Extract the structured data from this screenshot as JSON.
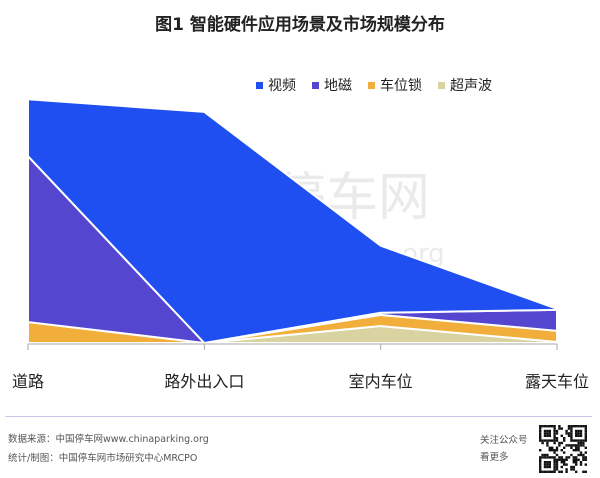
{
  "chart_data": {
    "type": "area",
    "stacked": true,
    "title": "图1 智能硬件应用场景及市场规模分布",
    "categories": [
      "道路",
      "路外出入口",
      "室内车位",
      "露天车位"
    ],
    "series": [
      {
        "name": "视频",
        "color": "#1f4ff0",
        "values": [
          21.5,
          87.2,
          25.3,
          0.4
        ]
      },
      {
        "name": "地磁",
        "color": "#5546d0",
        "values": [
          62.6,
          0,
          0.8,
          7.9
        ]
      },
      {
        "name": "车位锁",
        "color": "#f1ae3a",
        "values": [
          7.9,
          0,
          4.2,
          4.2
        ]
      },
      {
        "name": "超声波",
        "color": "#d8d3a0",
        "values": [
          0,
          0,
          6.4,
          0.4
        ]
      }
    ],
    "stack_order_bottom_to_top": [
      "超声波",
      "车位锁",
      "地磁",
      "视频"
    ],
    "xlabel": "",
    "ylabel": "",
    "y_axis_shown": false,
    "grid": false,
    "legend_position": "top-right"
  },
  "watermark": {
    "cn": "中国停车网",
    "url": "www.chinaparking.org"
  },
  "footer": {
    "source": "数据来源：中国停车网www.chinaparking.org",
    "credit": "统计/制图：中国停车网市场研究中心MRCPO",
    "follow": "关注公众号",
    "more": "看更多"
  }
}
